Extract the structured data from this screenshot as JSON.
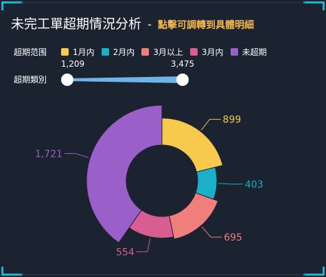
{
  "header": {
    "title": "未完工單超期情況分析",
    "separator": "-",
    "subtitle": "點擊可調轉到具體明細"
  },
  "filters": {
    "range_label": "超期范围",
    "category_label": "超期類別",
    "slider": {
      "min_label": "1,209",
      "max_label": "3,475",
      "min_value": 1209,
      "max_value": 3475
    }
  },
  "colors": {
    "accent": "#18b6d3",
    "subtitle": "#f2b84b",
    "slider": "#6fb3e8"
  },
  "chart_data": {
    "type": "pie",
    "variant": "rose-donut",
    "legend_position": "top-left",
    "series": [
      {
        "name": "1月内",
        "value": 899,
        "label": "899",
        "color": "#f7c94c"
      },
      {
        "name": "2月内",
        "value": 403,
        "label": "403",
        "color": "#1ab1c8"
      },
      {
        "name": "3月以上",
        "value": 695,
        "label": "695",
        "color": "#f07f7c"
      },
      {
        "name": "3月内",
        "value": 554,
        "label": "554",
        "color": "#d85d91"
      },
      {
        "name": "未超期",
        "value": 1721,
        "label": "1,721",
        "color": "#9a5fc8"
      }
    ]
  }
}
